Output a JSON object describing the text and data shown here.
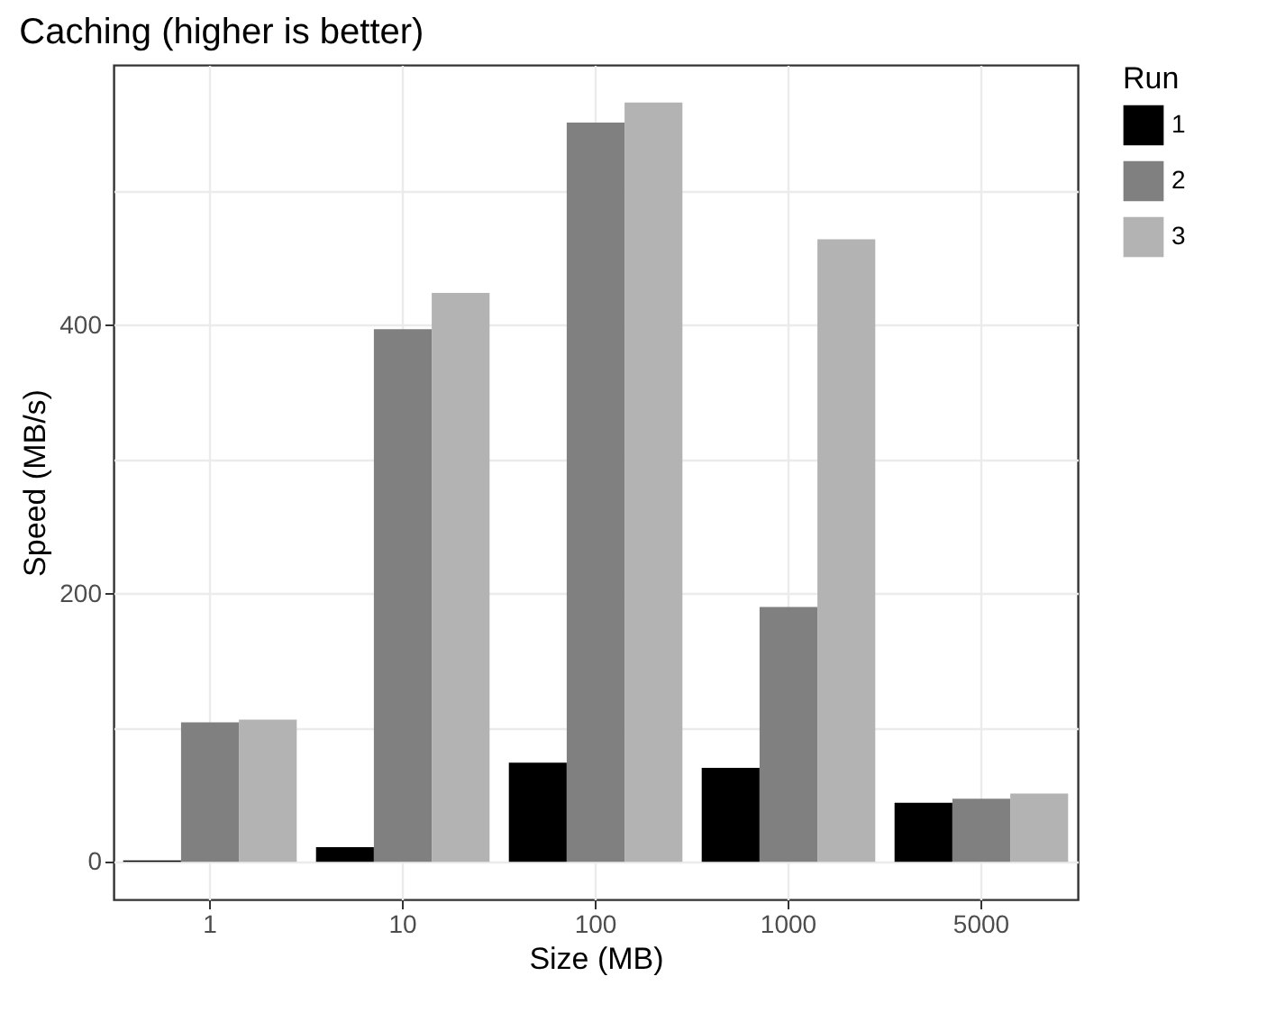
{
  "chart_data": {
    "type": "bar",
    "title": "Caching (higher is better)",
    "xlabel": "Size (MB)",
    "ylabel": "Speed (MB/s)",
    "legend_title": "Run",
    "categories": [
      "1",
      "10",
      "100",
      "1000",
      "5000"
    ],
    "series": [
      {
        "name": "1",
        "color": "#000000",
        "values": [
          1,
          11,
          74,
          70,
          44
        ]
      },
      {
        "name": "2",
        "color": "#808080",
        "values": [
          104,
          397,
          551,
          190,
          47
        ]
      },
      {
        "name": "3",
        "color": "#b3b3b3",
        "values": [
          106,
          424,
          566,
          464,
          51
        ]
      }
    ],
    "ylim": [
      -28,
      594
    ],
    "yticks": [
      0,
      {
        "value": 100,
        "label": null
      },
      200,
      {
        "value": 300,
        "label": null
      },
      400,
      {
        "value": 500,
        "label": null
      }
    ],
    "grid": true,
    "legend": "right"
  }
}
